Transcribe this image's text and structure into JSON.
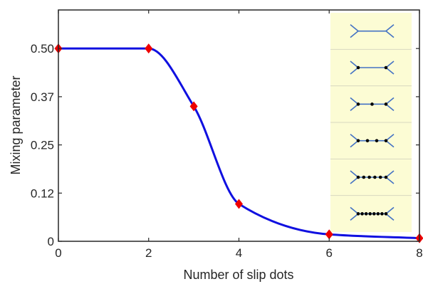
{
  "chart_data": {
    "type": "line",
    "xlabel": "Number of slip dots",
    "ylabel": "Mixing parameter",
    "xlim": [
      0,
      8
    ],
    "ylim": [
      0,
      0.6
    ],
    "xticks": [
      "0",
      "2",
      "4",
      "6",
      "8"
    ],
    "yticks": [
      "0",
      "0.12",
      "0.25",
      "0.37",
      "0.50"
    ],
    "ytick_values": [
      0,
      0.125,
      0.25,
      0.375,
      0.5
    ],
    "grid": false,
    "series": [
      {
        "x": [
          0,
          2,
          3,
          4,
          6,
          8
        ],
        "y": [
          0.5,
          0.5,
          0.35,
          0.097,
          0.018,
          0.008
        ],
        "curve_color": "#1010e0",
        "marker": "diamond",
        "marker_color": "#ee0000"
      }
    ],
    "inset": {
      "background": "#fcfcd4",
      "rows_dot_counts": [
        0,
        2,
        3,
        4,
        6,
        8
      ],
      "line_color": "#4472c4",
      "dot_color": "#000000"
    }
  }
}
